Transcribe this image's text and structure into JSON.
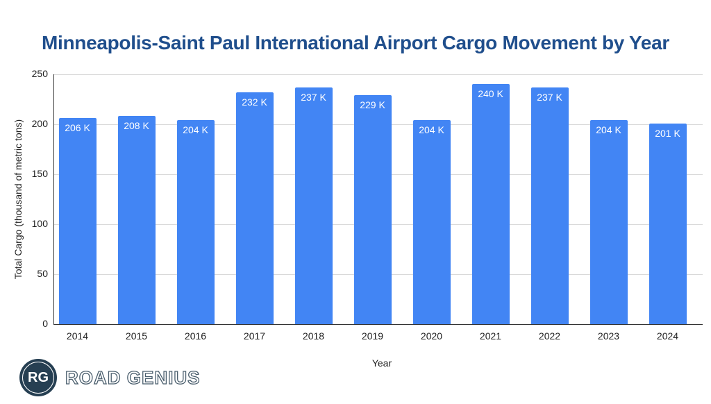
{
  "title": "Minneapolis-Saint Paul International Airport Cargo Movement by Year",
  "colors": {
    "bar": "#4285f4",
    "title": "#1f4e8c",
    "logo": "#263f52"
  },
  "logo": {
    "initials": "RG",
    "name": "ROAD GENIUS"
  },
  "chart_data": {
    "type": "bar",
    "title": "Minneapolis-Saint Paul International Airport Cargo Movement by Year",
    "xlabel": "Year",
    "ylabel": "Total Cargo (thousand of metric tons)",
    "ylim": [
      0,
      250
    ],
    "yticks": [
      0,
      50,
      100,
      150,
      200,
      250
    ],
    "grid": true,
    "legend": "none",
    "categories": [
      "2014",
      "2015",
      "2016",
      "2017",
      "2018",
      "2019",
      "2020",
      "2021",
      "2022",
      "2023",
      "2024"
    ],
    "values": [
      206,
      208,
      204,
      232,
      237,
      229,
      204,
      240,
      237,
      204,
      201
    ],
    "data_labels": [
      "206 K",
      "208 K",
      "204 K",
      "232 K",
      "237 K",
      "229 K",
      "204 K",
      "240 K",
      "237 K",
      "204 K",
      "201 K"
    ]
  }
}
